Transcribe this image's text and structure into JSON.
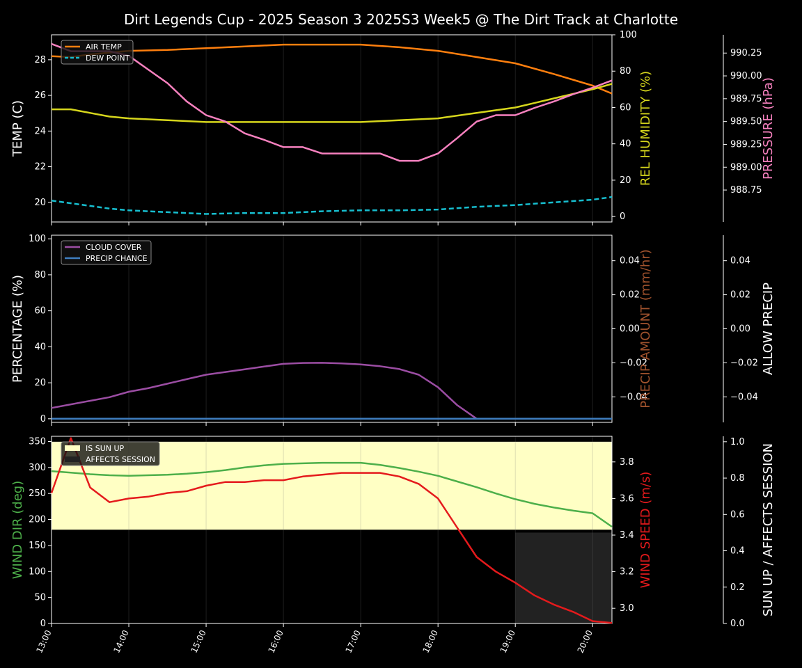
{
  "title": "Dirt Legends Cup - 2025 Season 3 2025S3 Week5 @ The Dirt Track at Charlotte",
  "colors": {
    "background": "#000000",
    "air_temp": "#ff7f0e",
    "dew_point": "#17becf",
    "humidity": "#d6d61c",
    "pressure": "#f781bf",
    "cloud_cover": "#9b4da3",
    "precip_chance": "#3f7ec0",
    "precip_amount_label": "#a0522d",
    "wind_dir": "#4daf4a",
    "wind_speed": "#e41a1c",
    "sun_up": "#ffffc4",
    "affects_session": "#222222"
  },
  "chart_data": [
    {
      "type": "line",
      "ylabel": "TEMP (C)",
      "y2label": "REL HUMIDITY (%)",
      "y3label": "PRESSURE (hPa)",
      "ylim": [
        18.9,
        29.4
      ],
      "y2lim": [
        -3,
        100
      ],
      "y3lim": [
        988.4,
        990.45
      ],
      "yticks": [
        "20",
        "22",
        "24",
        "26",
        "28"
      ],
      "y2ticks": [
        "0",
        "20",
        "40",
        "60",
        "80",
        "100"
      ],
      "y3ticks": [
        "988.75",
        "989.00",
        "989.25",
        "989.50",
        "989.75",
        "990.00",
        "990.25"
      ],
      "legend": [
        "AIR TEMP",
        "DEW POINT"
      ],
      "series": [
        {
          "name": "AIR TEMP",
          "axis": "left",
          "x": [
            13.0,
            13.25,
            13.5,
            13.75,
            14.0,
            14.5,
            15.0,
            15.5,
            16.0,
            16.5,
            17.0,
            17.5,
            18.0,
            18.5,
            19.0,
            19.5,
            20.0,
            20.25
          ],
          "values": [
            28.2,
            28.15,
            28.3,
            28.4,
            28.5,
            28.55,
            28.65,
            28.75,
            28.85,
            28.85,
            28.85,
            28.7,
            28.5,
            28.15,
            27.8,
            27.2,
            26.55,
            26.1
          ]
        },
        {
          "name": "DEW POINT",
          "axis": "left",
          "x": [
            13.0,
            13.25,
            13.5,
            13.75,
            14.0,
            14.5,
            15.0,
            15.5,
            16.0,
            16.5,
            17.0,
            17.5,
            18.0,
            18.5,
            19.0,
            19.5,
            20.0,
            20.25
          ],
          "values": [
            20.1,
            19.95,
            19.8,
            19.65,
            19.55,
            19.45,
            19.35,
            19.4,
            19.4,
            19.5,
            19.55,
            19.55,
            19.6,
            19.75,
            19.85,
            20.0,
            20.15,
            20.3
          ]
        },
        {
          "name": "REL HUMIDITY",
          "axis": "right",
          "x": [
            13.0,
            13.25,
            13.5,
            13.75,
            14.0,
            14.5,
            15.0,
            15.5,
            16.0,
            16.5,
            17.0,
            17.5,
            18.0,
            18.5,
            19.0,
            19.5,
            20.0,
            20.25
          ],
          "values": [
            59,
            59,
            57,
            55,
            54,
            53,
            52,
            52,
            52,
            52,
            52,
            53,
            54,
            57,
            60,
            65,
            70,
            73
          ]
        },
        {
          "name": "PRESSURE",
          "axis": "right2",
          "x": [
            13.0,
            13.25,
            13.5,
            13.75,
            14.0,
            14.25,
            14.5,
            14.75,
            15.0,
            15.25,
            15.5,
            15.75,
            16.0,
            16.25,
            16.5,
            16.75,
            17.0,
            17.25,
            17.5,
            17.75,
            18.0,
            18.25,
            18.5,
            18.75,
            19.0,
            19.25,
            19.5,
            19.75,
            20.0,
            20.25
          ],
          "values": [
            990.35,
            990.27,
            990.27,
            990.27,
            990.22,
            990.07,
            989.92,
            989.72,
            989.57,
            989.5,
            989.37,
            989.3,
            989.22,
            989.22,
            989.15,
            989.15,
            989.15,
            989.15,
            989.07,
            989.07,
            989.15,
            989.32,
            989.5,
            989.57,
            989.57,
            989.65,
            989.72,
            989.8,
            989.87,
            989.95
          ]
        }
      ]
    },
    {
      "type": "line",
      "ylabel": "PERCENTAGE (%)",
      "y2label": "PRECIP AMOUNT (mm/hr)",
      "y3label": "ALLOW PRECIP",
      "ylim": [
        -2,
        102
      ],
      "y2lim": [
        -0.055,
        0.055
      ],
      "y3lim": [
        -0.055,
        0.055
      ],
      "yticks": [
        "0",
        "20",
        "40",
        "60",
        "80",
        "100"
      ],
      "y2ticks": [
        "−0.04",
        "−0.02",
        "0.00",
        "0.02",
        "0.04"
      ],
      "y3ticks": [
        "−0.04",
        "−0.02",
        "0.00",
        "0.02",
        "0.04"
      ],
      "legend": [
        "CLOUD COVER",
        "PRECIP CHANCE"
      ],
      "series": [
        {
          "name": "CLOUD COVER",
          "x": [
            13.0,
            13.25,
            13.5,
            13.75,
            14.0,
            14.25,
            14.5,
            14.75,
            15.0,
            15.25,
            15.5,
            15.75,
            16.0,
            16.25,
            16.5,
            16.75,
            17.0,
            17.25,
            17.5,
            17.75,
            18.0,
            18.25,
            18.5,
            19.0,
            20.0,
            20.25
          ],
          "values": [
            6,
            8,
            10,
            12,
            15,
            17,
            19.5,
            22,
            24.5,
            26,
            27.5,
            29,
            30.5,
            31,
            31.1,
            30.8,
            30.2,
            29.2,
            27.6,
            24.5,
            17.5,
            7.5,
            0,
            0,
            0,
            0
          ]
        },
        {
          "name": "PRECIP CHANCE",
          "x": [
            13.0,
            20.25
          ],
          "values": [
            0,
            0
          ]
        }
      ]
    },
    {
      "type": "line",
      "ylabel": "WIND DIR (deg)",
      "y2label": "WIND SPEED (m/s)",
      "y3label": "SUN UP / AFFECTS SESSION",
      "ylim": [
        0,
        360
      ],
      "y2lim": [
        2.917,
        3.94
      ],
      "y3lim": [
        0,
        1.03
      ],
      "yticks": [
        "0",
        "50",
        "100",
        "150",
        "200",
        "250",
        "300",
        "350"
      ],
      "y2ticks": [
        "3.0",
        "3.2",
        "3.4",
        "3.6",
        "3.8"
      ],
      "y3ticks": [
        "0.0",
        "0.2",
        "0.4",
        "0.6",
        "0.8",
        "1.0"
      ],
      "legend": [
        "IS SUN UP",
        "AFFECTS SESSION"
      ],
      "sun_up": {
        "x_start": 13.0,
        "x_end": 20.25,
        "level": 0.5
      },
      "affects_session": {
        "x_start": 19.0,
        "x_end": 20.25
      },
      "series": [
        {
          "name": "WIND DIR",
          "axis": "left",
          "x": [
            13.0,
            13.25,
            13.5,
            13.75,
            14.0,
            14.25,
            14.5,
            14.75,
            15.0,
            15.25,
            15.5,
            15.75,
            16.0,
            16.25,
            16.5,
            16.75,
            17.0,
            17.25,
            17.5,
            17.75,
            18.0,
            18.25,
            18.5,
            18.75,
            19.0,
            19.25,
            19.5,
            19.75,
            20.0,
            20.25
          ],
          "values": [
            293,
            290,
            287,
            285,
            284,
            285,
            286,
            288,
            291,
            295,
            300,
            304,
            307,
            308,
            309,
            309,
            309,
            305,
            299,
            292,
            284,
            273,
            262,
            250,
            239,
            230,
            223,
            217,
            212,
            186
          ]
        },
        {
          "name": "WIND SPEED",
          "axis": "right",
          "x": [
            13.0,
            13.25,
            13.5,
            13.75,
            14.0,
            14.25,
            14.5,
            14.75,
            15.0,
            15.25,
            15.5,
            15.75,
            16.0,
            16.25,
            16.5,
            16.75,
            17.0,
            17.25,
            17.5,
            17.75,
            18.0,
            18.25,
            18.5,
            18.75,
            19.0,
            19.25,
            19.5,
            19.75,
            20.0,
            20.25
          ],
          "values": [
            3.63,
            3.93,
            3.66,
            3.58,
            3.6,
            3.61,
            3.63,
            3.64,
            3.67,
            3.69,
            3.69,
            3.7,
            3.7,
            3.72,
            3.73,
            3.74,
            3.74,
            3.74,
            3.72,
            3.68,
            3.6,
            3.44,
            3.28,
            3.2,
            3.14,
            3.07,
            3.02,
            2.98,
            2.93,
            2.92
          ]
        }
      ]
    }
  ],
  "x_ticks": [
    "13:00",
    "14:00",
    "15:00",
    "16:00",
    "17:00",
    "18:00",
    "19:00",
    "20:00"
  ],
  "x_range": [
    13.0,
    20.25
  ]
}
